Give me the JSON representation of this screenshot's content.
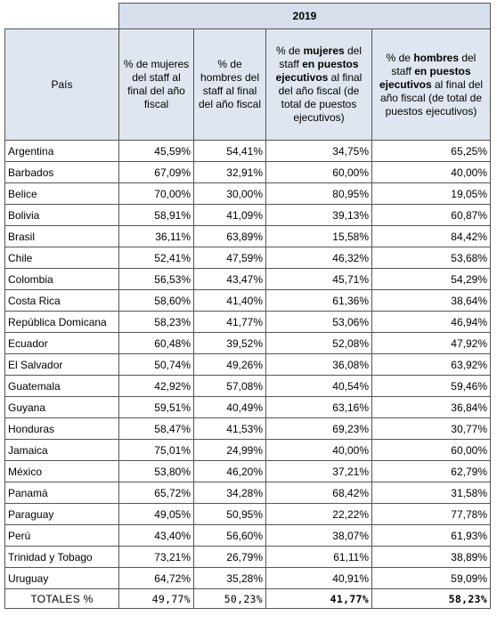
{
  "table": {
    "year": "2019",
    "columns": [
      [
        "País"
      ],
      [
        "% de mujeres del staff al final del año fiscal"
      ],
      [
        "% de hombres del staff al final del año fiscal"
      ],
      [
        "% de ",
        "mujeres",
        " del staff ",
        "en puestos ejecutivos",
        " al final del año fiscal (de total de puestos ejecutivos)"
      ],
      [
        "% de ",
        "hombres",
        " del staff ",
        "en puestos ejecutivos",
        " al final del año fiscal (de total de puestos ejecutivos)"
      ]
    ],
    "rows": [
      [
        "Argentina",
        "45,59%",
        "54,41%",
        "34,75%",
        "65,25%"
      ],
      [
        "Barbados",
        "67,09%",
        "32,91%",
        "60,00%",
        "40,00%"
      ],
      [
        "Belice",
        "70,00%",
        "30,00%",
        "80,95%",
        "19,05%"
      ],
      [
        "Bolivia",
        "58,91%",
        "41,09%",
        "39,13%",
        "60,87%"
      ],
      [
        "Brasil",
        "36,11%",
        "63,89%",
        "15,58%",
        "84,42%"
      ],
      [
        "Chile",
        "52,41%",
        "47,59%",
        "46,32%",
        "53,68%"
      ],
      [
        "Colombia",
        "56,53%",
        "43,47%",
        "45,71%",
        "54,29%"
      ],
      [
        "Costa Rica",
        "58,60%",
        "41,40%",
        "61,36%",
        "38,64%"
      ],
      [
        "República Domicana",
        "58,23%",
        "41,77%",
        "53,06%",
        "46,94%"
      ],
      [
        "Ecuador",
        "60,48%",
        "39,52%",
        "52,08%",
        "47,92%"
      ],
      [
        "El Salvador",
        "50,74%",
        "49,26%",
        "36,08%",
        "63,92%"
      ],
      [
        "Guatemala",
        "42,92%",
        "57,08%",
        "40,54%",
        "59,46%"
      ],
      [
        "Guyana",
        "59,51%",
        "40,49%",
        "63,16%",
        "36,84%"
      ],
      [
        "Honduras",
        "58,47%",
        "41,53%",
        "69,23%",
        "30,77%"
      ],
      [
        "Jamaica",
        "75,01%",
        "24,99%",
        "40,00%",
        "60,00%"
      ],
      [
        "México",
        "53,80%",
        "46,20%",
        "37,21%",
        "62,79%"
      ],
      [
        "Panamá",
        "65,72%",
        "34,28%",
        "68,42%",
        "31,58%"
      ],
      [
        "Paraguay",
        "49,05%",
        "50,95%",
        "22,22%",
        "77,78%"
      ],
      [
        "Perú",
        "43,40%",
        "56,60%",
        "38,07%",
        "61,93%"
      ],
      [
        "Trinidad y Tobago",
        "73,21%",
        "26,79%",
        "61,11%",
        "38,89%"
      ],
      [
        "Uruguay",
        "64,72%",
        "35,28%",
        "40,91%",
        "59,09%"
      ]
    ],
    "totals": [
      "TOTALES %",
      "49,77%",
      "50,23%",
      "41,77%",
      "58,23%"
    ]
  }
}
